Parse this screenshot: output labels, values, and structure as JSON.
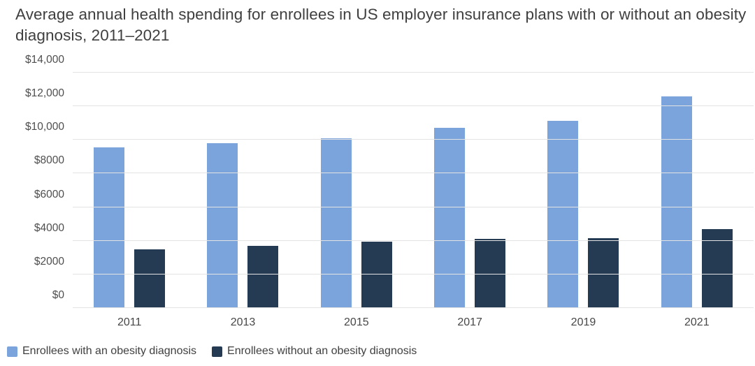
{
  "chart_data": {
    "type": "bar",
    "title": "Average annual health spending for enrollees in US employer insurance plans with or without an obesity diagnosis, 2011–2021",
    "categories": [
      "2011",
      "2013",
      "2015",
      "2017",
      "2019",
      "2021"
    ],
    "series": [
      {
        "name": "Enrollees with an obesity diagnosis",
        "color": "#7BA4DC",
        "values": [
          9550,
          9800,
          10100,
          10700,
          11150,
          12600
        ]
      },
      {
        "name": "Enrollees without an obesity diagnosis",
        "color": "#253B54",
        "values": [
          3500,
          3700,
          3950,
          4100,
          4150,
          4700
        ]
      }
    ],
    "ylim": [
      0,
      14000
    ],
    "yticks": [
      {
        "value": 14000,
        "label": "$14,000"
      },
      {
        "value": 12000,
        "label": "$12,000"
      },
      {
        "value": 10000,
        "label": "$10,000"
      },
      {
        "value": 8000,
        "label": "$8000"
      },
      {
        "value": 6000,
        "label": "$6000"
      },
      {
        "value": 4000,
        "label": "$4000"
      },
      {
        "value": 2000,
        "label": "$2000"
      },
      {
        "value": 0,
        "label": "$0"
      }
    ],
    "grid": true,
    "legend_position": "bottom-left"
  }
}
